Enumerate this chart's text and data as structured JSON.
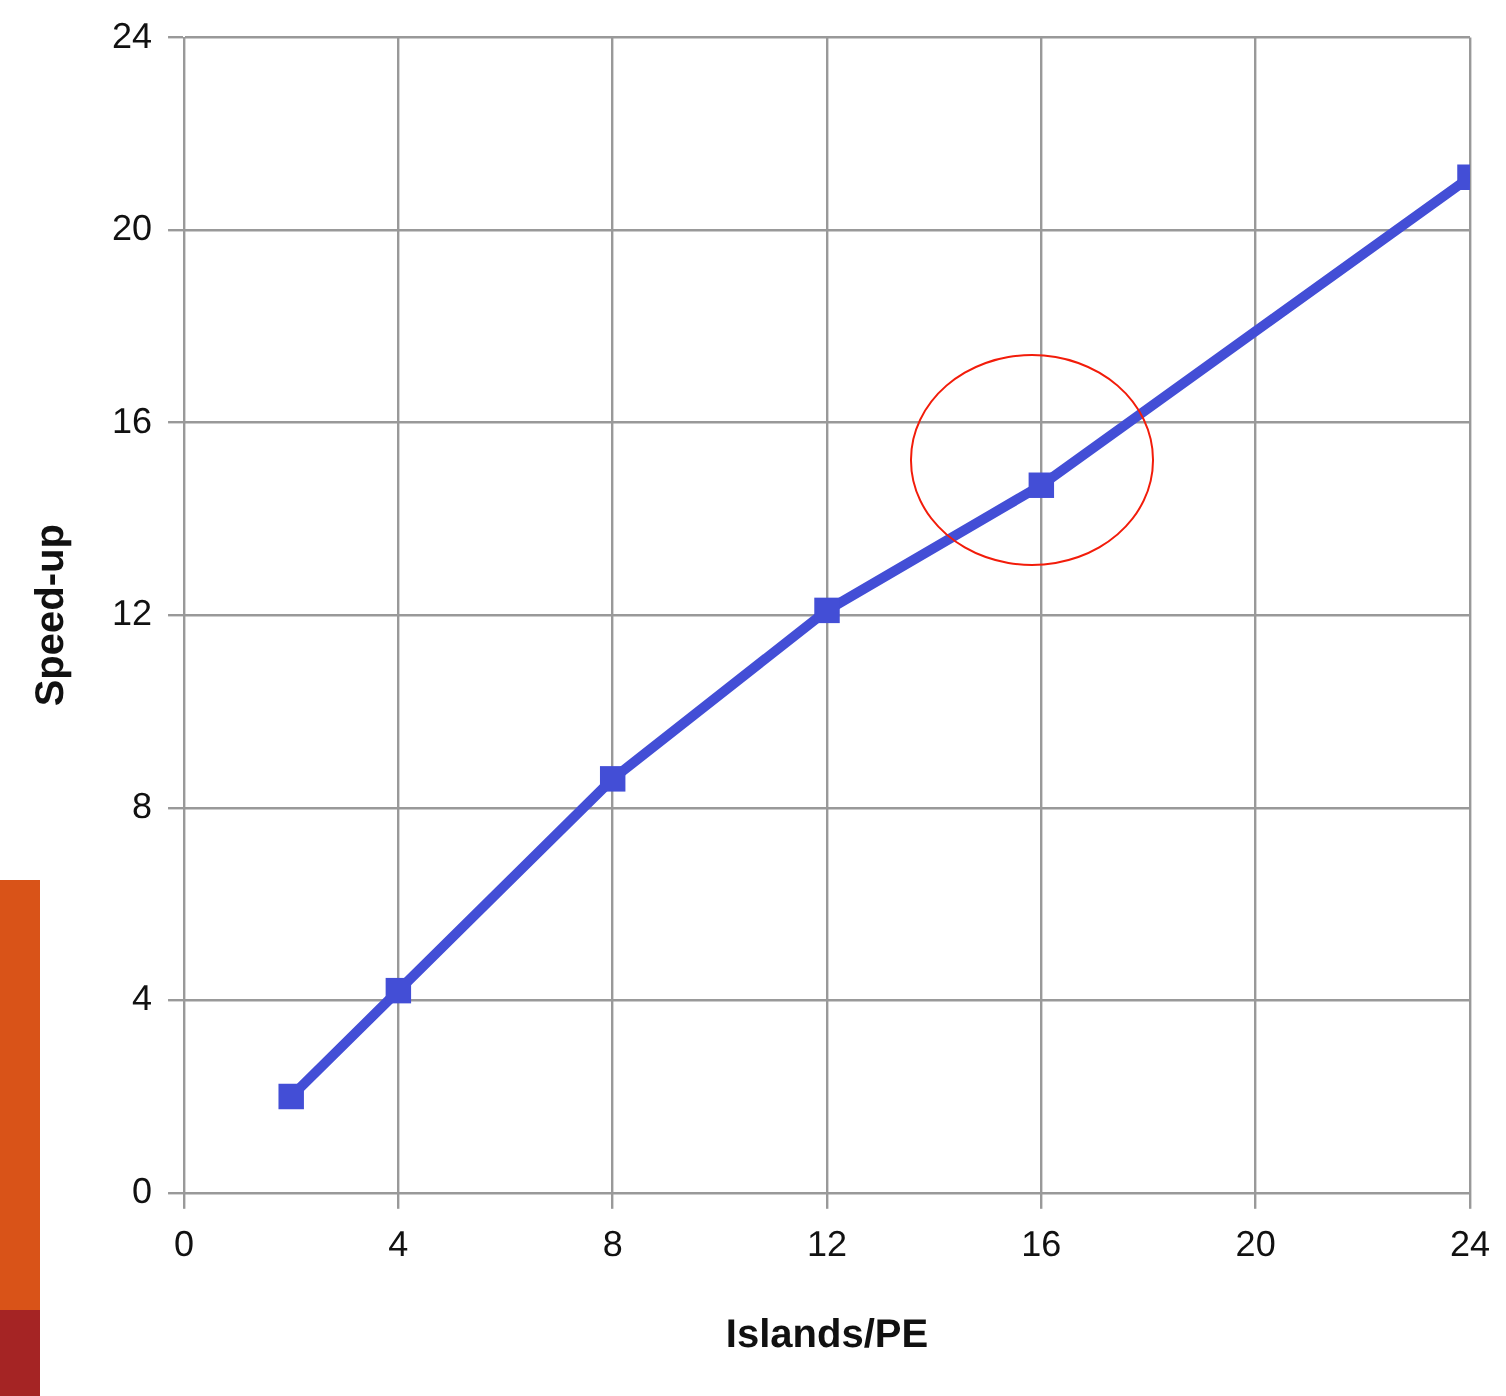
{
  "chart_data": {
    "type": "line",
    "xlabel": "Islands/PE",
    "ylabel": "Speed-up",
    "x": [
      2,
      4,
      8,
      12,
      16,
      24
    ],
    "series": [
      {
        "color": "#434ed6",
        "values": [
          2.0,
          4.2,
          8.6,
          12.1,
          14.7,
          21.1
        ]
      }
    ],
    "xlim": [
      0,
      24
    ],
    "xticks": [
      0,
      4,
      8,
      12,
      16,
      20,
      24
    ],
    "ylim": [
      0,
      24
    ],
    "yticks": [
      0,
      4,
      8,
      12,
      16,
      20,
      24
    ],
    "grid": true,
    "legend": false,
    "marker": "square",
    "line_style": "solid"
  }
}
